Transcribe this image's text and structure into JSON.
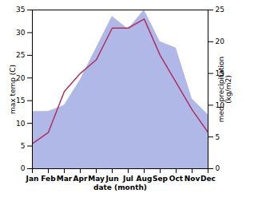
{
  "chart_data": {
    "type": "line",
    "xlabel": "date (month)",
    "ylabel": "max temp (C)",
    "y2label": "med. precipitation\n(kg/m2)",
    "categories": [
      "Jan",
      "Feb",
      "Mar",
      "Apr",
      "May",
      "Jun",
      "Jul",
      "Aug",
      "Sep",
      "Oct",
      "Nov",
      "Dec"
    ],
    "series": [
      {
        "type": "area",
        "axis": "y2",
        "color": "#b0b8e8",
        "values": [
          9.0,
          9.0,
          10.0,
          14.0,
          19.0,
          24.0,
          22.0,
          25.0,
          20.0,
          19.0,
          11.0,
          8.5
        ]
      },
      {
        "type": "line",
        "color": "#b03060",
        "values": [
          5.5,
          8.0,
          17.0,
          21.0,
          24.0,
          31.0,
          31.0,
          33.0,
          25.0,
          19.0,
          13.0,
          8.0
        ]
      }
    ],
    "ylim": [
      0,
      35
    ],
    "yticks": [
      0,
      5,
      10,
      15,
      20,
      25,
      30,
      35
    ],
    "y2lim": [
      0,
      25
    ],
    "y2ticks": [
      0,
      5,
      10,
      15,
      20,
      25
    ],
    "grid": false
  }
}
